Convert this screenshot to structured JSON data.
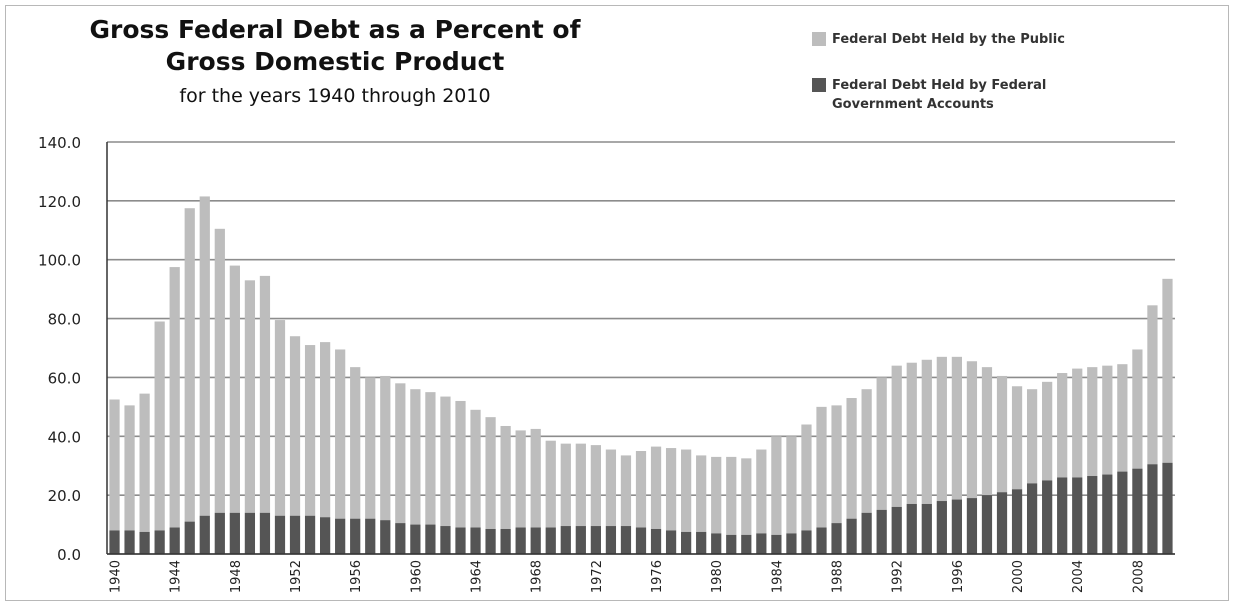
{
  "chart_data": {
    "type": "bar",
    "stacked": true,
    "title": "Gross Federal Debt as a Percent of Gross Domestic Product",
    "title_lines": [
      "Gross Federal Debt as a Percent of",
      "Gross Domestic Product"
    ],
    "subtitle": "for the years 1940 through 2010",
    "xlabel": "",
    "ylabel": "",
    "ylim": [
      0,
      140
    ],
    "ytick_step": 20,
    "ytick_decimals": 1,
    "grid": true,
    "legend_position": "top-right",
    "x_tick_labels": [
      "1940",
      "1944",
      "1948",
      "1952",
      "1956",
      "1960",
      "1964",
      "1968",
      "1972",
      "1976",
      "1980",
      "1984",
      "1988",
      "1992",
      "1996",
      "2000",
      "2004",
      "2008"
    ],
    "categories": [
      1940,
      1941,
      1942,
      1943,
      1944,
      1945,
      1946,
      1947,
      1948,
      1949,
      1950,
      1951,
      1952,
      1953,
      1954,
      1955,
      1956,
      1957,
      1958,
      1959,
      1960,
      1961,
      1962,
      1963,
      1964,
      1965,
      1966,
      1967,
      1968,
      1969,
      1970,
      1971,
      1972,
      1973,
      1974,
      1975,
      1976,
      1977,
      1978,
      1979,
      1980,
      1981,
      1982,
      1983,
      1984,
      1985,
      1986,
      1987,
      1988,
      1989,
      1990,
      1991,
      1992,
      1993,
      1994,
      1995,
      1996,
      1997,
      1998,
      1999,
      2000,
      2001,
      2002,
      2003,
      2004,
      2005,
      2006,
      2007,
      2008,
      2009,
      2010
    ],
    "series": [
      {
        "name": "Federal Debt Held by Federal Government Accounts",
        "color": "#555555",
        "values": [
          8,
          8,
          7.5,
          8,
          9,
          11,
          13,
          14,
          14,
          14,
          14,
          13,
          13,
          13,
          12.5,
          12,
          12,
          12,
          11.5,
          10.5,
          10,
          10,
          9.5,
          9,
          9,
          8.5,
          8.5,
          9,
          9,
          9,
          9.5,
          9.5,
          9.5,
          9.5,
          9.5,
          9,
          8.5,
          8,
          7.5,
          7.5,
          7,
          6.5,
          6.5,
          7,
          6.5,
          7,
          8,
          9,
          10.5,
          12,
          14,
          15,
          16,
          17,
          17,
          18,
          18.5,
          19,
          20,
          21,
          22,
          24,
          25,
          26,
          26,
          26.5,
          27,
          28,
          29,
          30.5,
          31
        ]
      },
      {
        "name": "Federal Debt Held by the Public",
        "color": "#bdbdbd",
        "values": [
          44.5,
          42.5,
          47,
          71,
          88.5,
          106.5,
          108.5,
          96.5,
          84,
          79,
          80.5,
          66.5,
          61,
          58,
          59.5,
          57.5,
          51.5,
          48,
          49,
          47.5,
          46,
          45,
          44,
          43,
          40,
          38,
          35,
          33,
          33.5,
          29.5,
          28,
          28,
          27.5,
          26,
          24,
          26,
          28,
          28,
          28,
          26,
          26,
          26.5,
          26,
          28.5,
          33.5,
          33,
          36,
          41,
          40,
          41,
          42,
          45,
          48,
          48,
          49,
          49,
          48.5,
          46.5,
          43.5,
          39.5,
          35,
          32,
          33.5,
          35.5,
          37,
          37,
          37,
          36.5,
          40.5,
          54,
          62.5
        ]
      }
    ]
  },
  "legend": {
    "public_label": "Federal Debt Held by the Public",
    "federal_label": "Federal Debt Held by Federal Government Accounts"
  }
}
